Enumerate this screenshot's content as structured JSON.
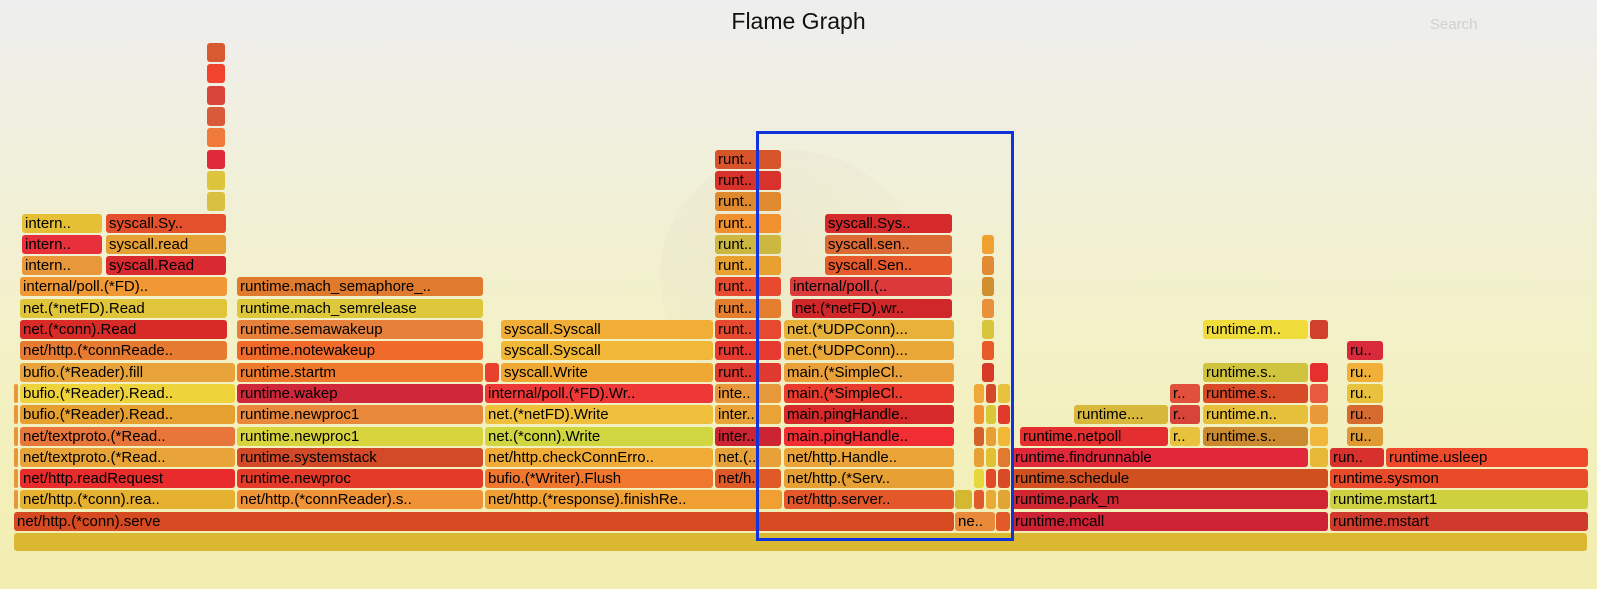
{
  "title": "Flame Graph",
  "search": {
    "placeholder": "Search"
  },
  "colors": {
    "red": "#d62e2e",
    "red2": "#e0383a",
    "crimson": "#cc2233",
    "orange": "#e57e2c",
    "orange2": "#f0922e",
    "darkorange": "#d95b24",
    "yellow": "#e8c634",
    "yellow2": "#ecdc3a",
    "amber": "#f2a630",
    "olive": "#ccb840",
    "selection": "#1133dd"
  },
  "frames": [
    {
      "l": 14,
      "w": 1573,
      "row": 0,
      "label": "",
      "c": "#dbb832"
    },
    {
      "l": 14,
      "w": 940,
      "row": 1,
      "label": "net/http.(*conn).serve",
      "c": "#d64a22"
    },
    {
      "l": 955,
      "w": 40,
      "row": 1,
      "label": "ne..",
      "c": "#e88a3a"
    },
    {
      "l": 996,
      "w": 14,
      "row": 1,
      "label": "",
      "c": "#e25a2a"
    },
    {
      "l": 1012,
      "w": 316,
      "row": 1,
      "label": "runtime.mcall",
      "c": "#cc2233"
    },
    {
      "l": 1330,
      "w": 258,
      "row": 1,
      "label": "runtime.mstart",
      "c": "#d03a2c"
    },
    {
      "l": 14,
      "w": 4,
      "row": 2,
      "label": "",
      "c": "#e8963a"
    },
    {
      "l": 20,
      "w": 215,
      "row": 2,
      "label": "net/http.(*conn).rea..",
      "c": "#e6b030"
    },
    {
      "l": 237,
      "w": 246,
      "row": 2,
      "label": "net/http.(*connReader).s..",
      "c": "#f09236"
    },
    {
      "l": 485,
      "w": 297,
      "row": 2,
      "label": "net/http.(*response).finishRe..",
      "c": "#f0a033"
    },
    {
      "l": 784,
      "w": 170,
      "row": 2,
      "label": "net/http.server..",
      "c": "#e4572a"
    },
    {
      "l": 955,
      "w": 17,
      "row": 2,
      "label": "",
      "c": "#d4b830"
    },
    {
      "l": 974,
      "w": 10,
      "row": 2,
      "label": "",
      "c": "#e05a2a"
    },
    {
      "l": 986,
      "w": 10,
      "row": 2,
      "label": "",
      "c": "#e8ac36"
    },
    {
      "l": 998,
      "w": 12,
      "row": 2,
      "label": "",
      "c": "#e0a534"
    },
    {
      "l": 1012,
      "w": 316,
      "row": 2,
      "label": "runtime.park_m",
      "c": "#cf2631"
    },
    {
      "l": 1330,
      "w": 258,
      "row": 2,
      "label": "runtime.mstart1",
      "c": "#cfd040"
    },
    {
      "l": 14,
      "w": 4,
      "row": 3,
      "label": "",
      "c": "#e8963a"
    },
    {
      "l": 20,
      "w": 215,
      "row": 3,
      "label": "net/http.readRequest",
      "c": "#e82c2c"
    },
    {
      "l": 237,
      "w": 246,
      "row": 3,
      "label": "runtime.newproc",
      "c": "#e43a2a"
    },
    {
      "l": 485,
      "w": 228,
      "row": 3,
      "label": "bufio.(*Writer).Flush",
      "c": "#f0782e"
    },
    {
      "l": 715,
      "w": 66,
      "row": 3,
      "label": "net/h..",
      "c": "#e05a28"
    },
    {
      "l": 784,
      "w": 170,
      "row": 3,
      "label": "net/http.(*Serv..",
      "c": "#e6a034"
    },
    {
      "l": 974,
      "w": 10,
      "row": 3,
      "label": "",
      "c": "#e6d83c"
    },
    {
      "l": 986,
      "w": 10,
      "row": 3,
      "label": "",
      "c": "#e04a2a"
    },
    {
      "l": 998,
      "w": 12,
      "row": 3,
      "label": "",
      "c": "#d94a28"
    },
    {
      "l": 1012,
      "w": 316,
      "row": 3,
      "label": "runtime.schedule",
      "c": "#d0501f"
    },
    {
      "l": 1330,
      "w": 258,
      "row": 3,
      "label": "runtime.sysmon",
      "c": "#e84a2a"
    },
    {
      "l": 14,
      "w": 4,
      "row": 4,
      "label": "",
      "c": "#e8963a"
    },
    {
      "l": 20,
      "w": 215,
      "row": 4,
      "label": "net/textproto.(*Read..",
      "c": "#e8a438"
    },
    {
      "l": 237,
      "w": 246,
      "row": 4,
      "label": "runtime.systemstack",
      "c": "#d24a28"
    },
    {
      "l": 485,
      "w": 228,
      "row": 4,
      "label": "net/http.checkConnErro..",
      "c": "#f0ac36"
    },
    {
      "l": 715,
      "w": 66,
      "row": 4,
      "label": "net.(..",
      "c": "#e6a238"
    },
    {
      "l": 784,
      "w": 170,
      "row": 4,
      "label": "net/http.Handle..",
      "c": "#eaa438"
    },
    {
      "l": 974,
      "w": 10,
      "row": 4,
      "label": "",
      "c": "#e8a034"
    },
    {
      "l": 986,
      "w": 10,
      "row": 4,
      "label": "",
      "c": "#e2c034"
    },
    {
      "l": 998,
      "w": 12,
      "row": 4,
      "label": "",
      "c": "#e07a30"
    },
    {
      "l": 1012,
      "w": 296,
      "row": 4,
      "label": "runtime.findrunnable",
      "c": "#e0283a"
    },
    {
      "l": 1310,
      "w": 18,
      "row": 4,
      "label": "",
      "c": "#e8b838"
    },
    {
      "l": 1330,
      "w": 54,
      "row": 4,
      "label": "run..",
      "c": "#d8302c"
    },
    {
      "l": 1386,
      "w": 202,
      "row": 4,
      "label": "runtime.usleep",
      "c": "#f04a2c"
    },
    {
      "l": 14,
      "w": 4,
      "row": 5,
      "label": "",
      "c": "#e8963a"
    },
    {
      "l": 20,
      "w": 215,
      "row": 5,
      "label": "net/textproto.(*Read..",
      "c": "#e8763a"
    },
    {
      "l": 237,
      "w": 246,
      "row": 5,
      "label": "runtime.newproc1",
      "c": "#d8d43e"
    },
    {
      "l": 485,
      "w": 228,
      "row": 5,
      "label": "net.(*conn).Write",
      "c": "#d0d640"
    },
    {
      "l": 715,
      "w": 66,
      "row": 5,
      "label": "inter..",
      "c": "#cc2433"
    },
    {
      "l": 784,
      "w": 170,
      "row": 5,
      "label": "main.pingHandle..",
      "c": "#f02e34"
    },
    {
      "l": 974,
      "w": 10,
      "row": 5,
      "label": "",
      "c": "#d4602a"
    },
    {
      "l": 986,
      "w": 10,
      "row": 5,
      "label": "",
      "c": "#e8a034"
    },
    {
      "l": 998,
      "w": 12,
      "row": 5,
      "label": "",
      "c": "#f0b836"
    },
    {
      "l": 1020,
      "w": 148,
      "row": 5,
      "label": "runtime.netpoll",
      "c": "#e42e30"
    },
    {
      "l": 1170,
      "w": 30,
      "row": 5,
      "label": "r..",
      "c": "#e8c23c"
    },
    {
      "l": 1203,
      "w": 105,
      "row": 5,
      "label": "runtime.s..",
      "c": "#cc8a30"
    },
    {
      "l": 1310,
      "w": 18,
      "row": 5,
      "label": "",
      "c": "#f0b83a"
    },
    {
      "l": 1347,
      "w": 36,
      "row": 5,
      "label": "ru..",
      "c": "#e09a34"
    },
    {
      "l": 14,
      "w": 4,
      "row": 6,
      "label": "",
      "c": "#e8963a"
    },
    {
      "l": 20,
      "w": 215,
      "row": 6,
      "label": "bufio.(*Reader).Read..",
      "c": "#e6a030"
    },
    {
      "l": 237,
      "w": 246,
      "row": 6,
      "label": "runtime.newproc1",
      "c": "#e8883a"
    },
    {
      "l": 485,
      "w": 228,
      "row": 6,
      "label": "net.(*netFD).Write",
      "c": "#f0c03c"
    },
    {
      "l": 715,
      "w": 66,
      "row": 6,
      "label": "inter..",
      "c": "#e8a236"
    },
    {
      "l": 784,
      "w": 170,
      "row": 6,
      "label": "main.pingHandle..",
      "c": "#d62a2a"
    },
    {
      "l": 974,
      "w": 10,
      "row": 6,
      "label": "",
      "c": "#f09232"
    },
    {
      "l": 986,
      "w": 10,
      "row": 6,
      "label": "",
      "c": "#d8c838"
    },
    {
      "l": 998,
      "w": 12,
      "row": 6,
      "label": "",
      "c": "#e03a2c"
    },
    {
      "l": 1074,
      "w": 94,
      "row": 6,
      "label": "runtime....",
      "c": "#d8b83a"
    },
    {
      "l": 1170,
      "w": 30,
      "row": 6,
      "label": "r..",
      "c": "#d8443a"
    },
    {
      "l": 1203,
      "w": 105,
      "row": 6,
      "label": "runtime.n..",
      "c": "#e6c03a"
    },
    {
      "l": 1310,
      "w": 18,
      "row": 6,
      "label": "",
      "c": "#e89a38"
    },
    {
      "l": 1347,
      "w": 36,
      "row": 6,
      "label": "ru..",
      "c": "#d66a30"
    },
    {
      "l": 14,
      "w": 4,
      "row": 7,
      "label": "",
      "c": "#e8963a"
    },
    {
      "l": 20,
      "w": 215,
      "row": 7,
      "label": "bufio.(*Reader).Read..",
      "c": "#eed43a"
    },
    {
      "l": 237,
      "w": 246,
      "row": 7,
      "label": "runtime.wakep",
      "c": "#d0283a"
    },
    {
      "l": 485,
      "w": 228,
      "row": 7,
      "label": "internal/poll.(*FD).Wr..",
      "c": "#ee3838"
    },
    {
      "l": 715,
      "w": 66,
      "row": 7,
      "label": "inte..",
      "c": "#e6983a"
    },
    {
      "l": 784,
      "w": 170,
      "row": 7,
      "label": "main.(*SimpleCl..",
      "c": "#ea3c2e"
    },
    {
      "l": 974,
      "w": 10,
      "row": 7,
      "label": "",
      "c": "#f0a838"
    },
    {
      "l": 986,
      "w": 10,
      "row": 7,
      "label": "",
      "c": "#d24a2a"
    },
    {
      "l": 998,
      "w": 12,
      "row": 7,
      "label": "",
      "c": "#e8c23c"
    },
    {
      "l": 1170,
      "w": 30,
      "row": 7,
      "label": "r..",
      "c": "#e0503a"
    },
    {
      "l": 1203,
      "w": 105,
      "row": 7,
      "label": "runtime.s..",
      "c": "#d84a28"
    },
    {
      "l": 1310,
      "w": 18,
      "row": 7,
      "label": "",
      "c": "#e85a40"
    },
    {
      "l": 1347,
      "w": 36,
      "row": 7,
      "label": "ru..",
      "c": "#e8c23c"
    },
    {
      "l": 20,
      "w": 215,
      "row": 8,
      "label": "bufio.(*Reader).fill",
      "c": "#e8a43a"
    },
    {
      "l": 237,
      "w": 246,
      "row": 8,
      "label": "runtime.startm",
      "c": "#ee7a2e"
    },
    {
      "l": 485,
      "w": 14,
      "row": 8,
      "label": "",
      "c": "#e8422e"
    },
    {
      "l": 501,
      "w": 212,
      "row": 8,
      "label": "syscall.Write",
      "c": "#f0a834"
    },
    {
      "l": 715,
      "w": 66,
      "row": 8,
      "label": "runt..",
      "c": "#e03a30"
    },
    {
      "l": 784,
      "w": 170,
      "row": 8,
      "label": "main.(*SimpleCl..",
      "c": "#eaa03a"
    },
    {
      "l": 982,
      "w": 12,
      "row": 8,
      "label": "",
      "c": "#d83a28"
    },
    {
      "l": 1203,
      "w": 105,
      "row": 8,
      "label": "runtime.s..",
      "c": "#d0c43e"
    },
    {
      "l": 1310,
      "w": 18,
      "row": 8,
      "label": "",
      "c": "#e6302e"
    },
    {
      "l": 1347,
      "w": 36,
      "row": 8,
      "label": "ru..",
      "c": "#f0b03a"
    },
    {
      "l": 20,
      "w": 207,
      "row": 9,
      "label": "net/http.(*connReade..",
      "c": "#e67a30"
    },
    {
      "l": 237,
      "w": 246,
      "row": 9,
      "label": "runtime.notewakeup",
      "c": "#f06a2c"
    },
    {
      "l": 501,
      "w": 212,
      "row": 9,
      "label": "syscall.Syscall",
      "c": "#f0b836"
    },
    {
      "l": 715,
      "w": 66,
      "row": 9,
      "label": "runt..",
      "c": "#e63a30"
    },
    {
      "l": 784,
      "w": 170,
      "row": 9,
      "label": "net.(*UDPConn)...",
      "c": "#eaa838"
    },
    {
      "l": 982,
      "w": 12,
      "row": 9,
      "label": "",
      "c": "#e85a2a"
    },
    {
      "l": 1347,
      "w": 36,
      "row": 9,
      "label": "ru..",
      "c": "#d82a3a"
    },
    {
      "l": 20,
      "w": 207,
      "row": 10,
      "label": "net.(*conn).Read",
      "c": "#d82a26"
    },
    {
      "l": 237,
      "w": 246,
      "row": 10,
      "label": "runtime.semawakeup",
      "c": "#e6803a"
    },
    {
      "l": 501,
      "w": 212,
      "row": 10,
      "label": "syscall.Syscall",
      "c": "#f0ae36"
    },
    {
      "l": 715,
      "w": 66,
      "row": 10,
      "label": "runt..",
      "c": "#e64830"
    },
    {
      "l": 784,
      "w": 170,
      "row": 10,
      "label": "net.(*UDPConn)...",
      "c": "#e8b23a"
    },
    {
      "l": 982,
      "w": 12,
      "row": 10,
      "label": "",
      "c": "#d8c43c"
    },
    {
      "l": 1203,
      "w": 105,
      "row": 10,
      "label": "runtime.m..",
      "c": "#f0dc3a"
    },
    {
      "l": 1310,
      "w": 18,
      "row": 10,
      "label": "",
      "c": "#d0402a"
    },
    {
      "l": 20,
      "w": 207,
      "row": 11,
      "label": "net.(*netFD).Read",
      "c": "#e0c43a"
    },
    {
      "l": 237,
      "w": 246,
      "row": 11,
      "label": "runtime.mach_semrelease",
      "c": "#dcc83a"
    },
    {
      "l": 715,
      "w": 66,
      "row": 11,
      "label": "runt..",
      "c": "#e67e30"
    },
    {
      "l": 792,
      "w": 160,
      "row": 11,
      "label": "net.(*netFD).wr..",
      "c": "#d0282a"
    },
    {
      "l": 982,
      "w": 12,
      "row": 11,
      "label": "",
      "c": "#e8903a"
    },
    {
      "l": 20,
      "w": 207,
      "row": 12,
      "label": "internal/poll.(*FD)..",
      "c": "#f09834"
    },
    {
      "l": 237,
      "w": 246,
      "row": 12,
      "label": "runtime.mach_semaphore_..",
      "c": "#e07a2c"
    },
    {
      "l": 715,
      "w": 66,
      "row": 12,
      "label": "runt..",
      "c": "#e84a30"
    },
    {
      "l": 790,
      "w": 162,
      "row": 12,
      "label": "internal/poll.(..",
      "c": "#dc3a3a"
    },
    {
      "l": 982,
      "w": 12,
      "row": 12,
      "label": "",
      "c": "#d09030"
    },
    {
      "l": 22,
      "w": 80,
      "row": 13,
      "label": "intern..",
      "c": "#e8983a"
    },
    {
      "l": 106,
      "w": 120,
      "row": 13,
      "label": "syscall.Read",
      "c": "#d82a30"
    },
    {
      "l": 715,
      "w": 66,
      "row": 13,
      "label": "runt..",
      "c": "#e8a030"
    },
    {
      "l": 825,
      "w": 127,
      "row": 13,
      "label": "syscall.Sen..",
      "c": "#e65a2c"
    },
    {
      "l": 982,
      "w": 12,
      "row": 13,
      "label": "",
      "c": "#e08a34"
    },
    {
      "l": 22,
      "w": 80,
      "row": 14,
      "label": "intern..",
      "c": "#e8303a"
    },
    {
      "l": 106,
      "w": 120,
      "row": 14,
      "label": "syscall.read",
      "c": "#e6a036"
    },
    {
      "l": 715,
      "w": 66,
      "row": 14,
      "label": "runt..",
      "c": "#ccb840"
    },
    {
      "l": 825,
      "w": 127,
      "row": 14,
      "label": "syscall.sen..",
      "c": "#dc6a34"
    },
    {
      "l": 982,
      "w": 12,
      "row": 14,
      "label": "",
      "c": "#f0a030"
    },
    {
      "l": 22,
      "w": 80,
      "row": 15,
      "label": "intern..",
      "c": "#e6c034"
    },
    {
      "l": 106,
      "w": 120,
      "row": 15,
      "label": "syscall.Sy..",
      "c": "#e4502c"
    },
    {
      "l": 715,
      "w": 66,
      "row": 15,
      "label": "runt..",
      "c": "#f0902e"
    },
    {
      "l": 825,
      "w": 127,
      "row": 15,
      "label": "syscall.Sys..",
      "c": "#d42a2c"
    },
    {
      "l": 715,
      "w": 66,
      "row": 16,
      "label": "runt..",
      "c": "#e08a30"
    },
    {
      "l": 207,
      "w": 18,
      "row": 16,
      "label": "",
      "c": "#d8c040"
    },
    {
      "l": 715,
      "w": 66,
      "row": 17,
      "label": "runt..",
      "c": "#d8322c"
    },
    {
      "l": 207,
      "w": 18,
      "row": 17,
      "label": "",
      "c": "#dcc43c"
    },
    {
      "l": 715,
      "w": 66,
      "row": 18,
      "label": "runt..",
      "c": "#d8542a"
    },
    {
      "l": 207,
      "w": 18,
      "row": 18,
      "label": "",
      "c": "#e02a3a"
    },
    {
      "l": 207,
      "w": 18,
      "row": 19,
      "label": "",
      "c": "#f07a3a"
    },
    {
      "l": 207,
      "w": 18,
      "row": 20,
      "label": "",
      "c": "#d85a3a"
    },
    {
      "l": 207,
      "w": 18,
      "row": 21,
      "label": "",
      "c": "#d8443a"
    },
    {
      "l": 207,
      "w": 18,
      "row": 22,
      "label": "",
      "c": "#f0442c"
    },
    {
      "l": 207,
      "w": 18,
      "row": 23,
      "label": "",
      "c": "#d85a30"
    }
  ]
}
